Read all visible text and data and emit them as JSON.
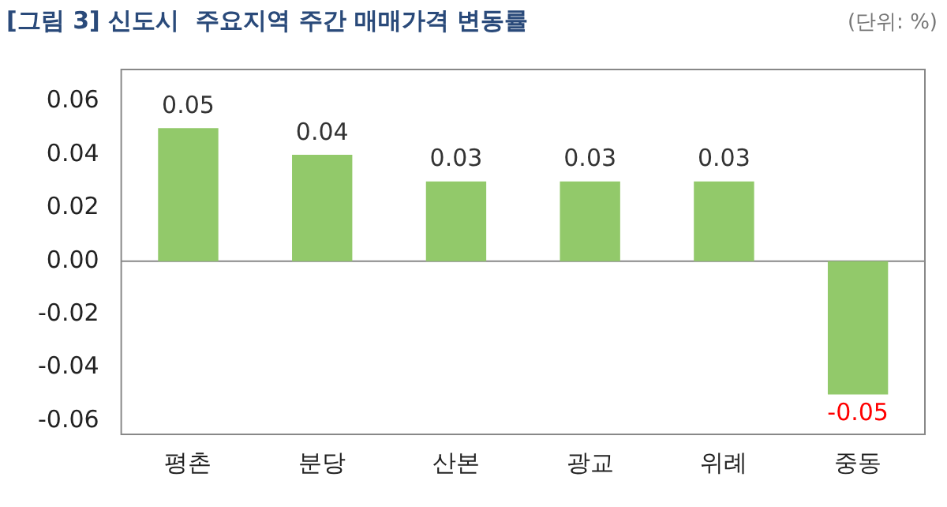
{
  "chart_data": {
    "type": "bar",
    "title": "[그림 3] 신도시  주요지역 주간 매매가격 변동률",
    "annotations": [
      "(단위: %)"
    ],
    "categories": [
      "평촌",
      "분당",
      "산본",
      "광교",
      "위례",
      "중동"
    ],
    "values": [
      0.05,
      0.04,
      0.03,
      0.03,
      0.03,
      -0.05
    ],
    "color": "#92c96a",
    "ylim": [
      -0.065,
      0.072
    ],
    "yticks": [
      {
        "value": -0.06,
        "label": "-0.06"
      },
      {
        "value": -0.04,
        "label": "-0.04"
      },
      {
        "value": -0.02,
        "label": "-0.02"
      },
      {
        "value": 0,
        "label": "0.00"
      },
      {
        "value": 0.02,
        "label": "0.02"
      },
      {
        "value": 0.04,
        "label": "0.04"
      },
      {
        "value": 0.06,
        "label": "0.06"
      }
    ],
    "ref_lines": [
      {
        "axis": "y",
        "value": 0,
        "color": "#888888"
      }
    ],
    "grid": false,
    "legend": false,
    "data_labels": true
  }
}
